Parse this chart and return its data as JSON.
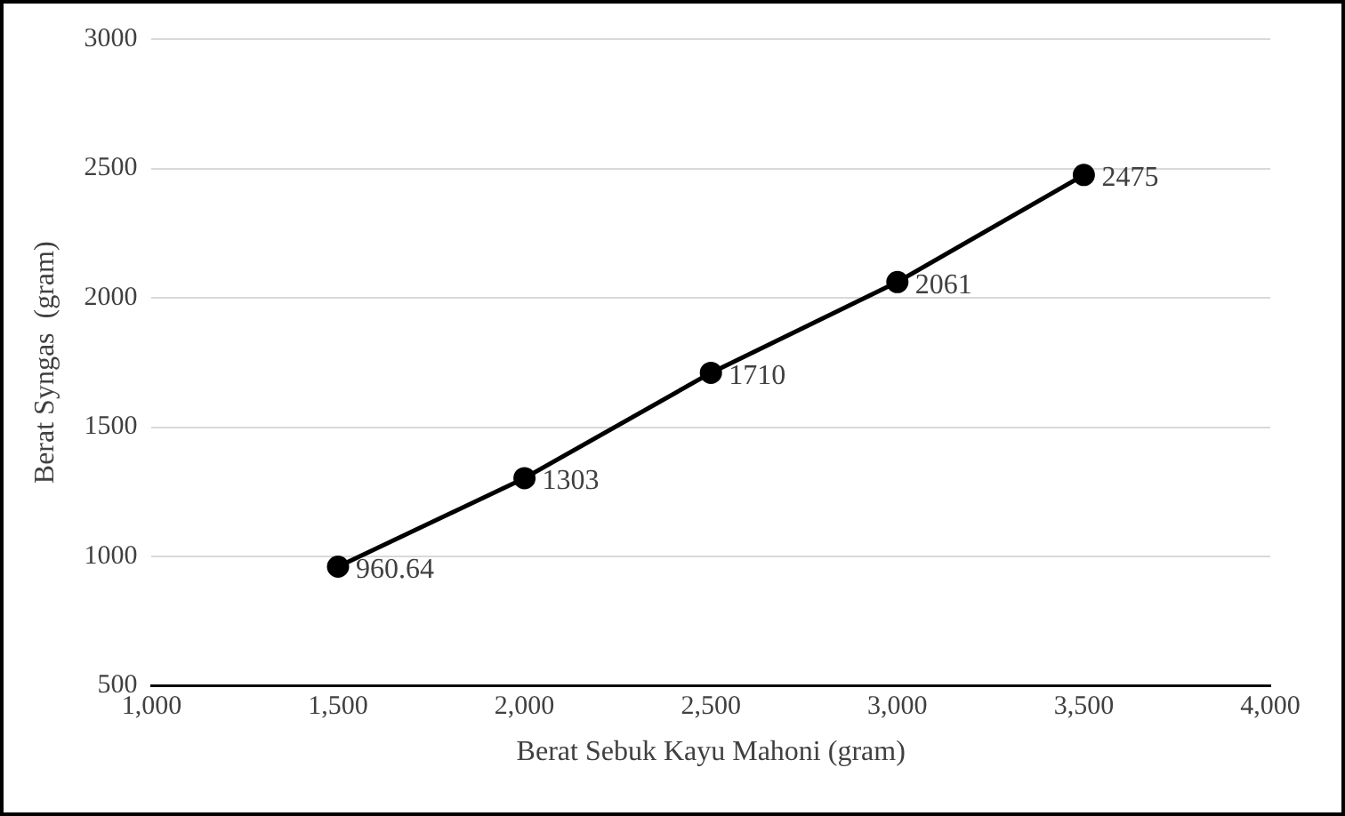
{
  "chart_data": {
    "type": "line",
    "xlabel": "Berat Sebuk Kayu Mahoni (gram)",
    "ylabel": "Berat Syngas  (gram)",
    "x": [
      1500,
      2000,
      2500,
      3000,
      3500
    ],
    "series": [
      {
        "color": "#000000",
        "values": [
          960.64,
          1303,
          1710,
          2061,
          2475
        ]
      }
    ],
    "xlim": [
      1000,
      4000
    ],
    "xticks": [
      {
        "value": 1000,
        "label": "1,000"
      },
      {
        "value": 1500,
        "label": "1,500"
      },
      {
        "value": 2000,
        "label": "2,000"
      },
      {
        "value": 2500,
        "label": "2,500"
      },
      {
        "value": 3000,
        "label": "3,000"
      },
      {
        "value": 3500,
        "label": "3,500"
      },
      {
        "value": 4000,
        "label": "4,000"
      }
    ],
    "ylim": [
      500,
      3000
    ],
    "yticks": [
      500,
      1000,
      1500,
      2000,
      2500,
      3000
    ],
    "grid": "y",
    "marker": "circle",
    "line_style": "solid",
    "data_labels": true,
    "legend": false
  }
}
